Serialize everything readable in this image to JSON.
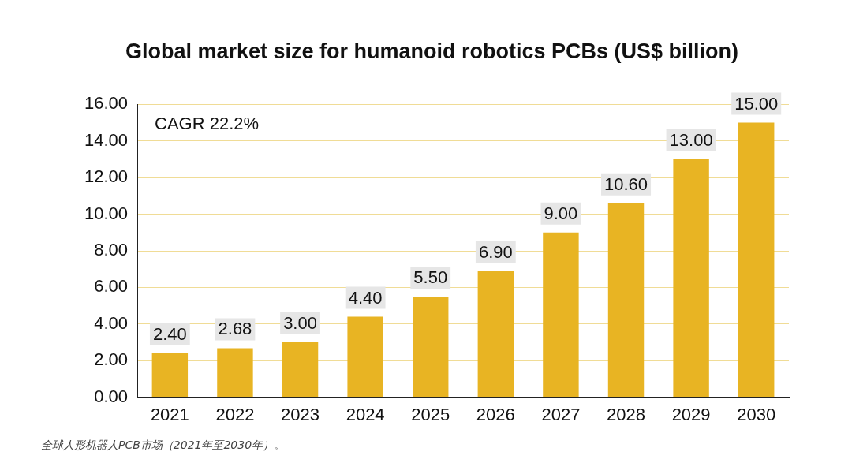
{
  "chart_data": {
    "type": "bar",
    "title": "Global market size for humanoid robotics PCBs (US$ billion)",
    "categories": [
      "2021",
      "2022",
      "2023",
      "2024",
      "2025",
      "2026",
      "2027",
      "2028",
      "2029",
      "2030"
    ],
    "values": [
      2.4,
      2.68,
      3.0,
      4.4,
      5.5,
      6.9,
      9.0,
      10.6,
      13.0,
      15.0
    ],
    "value_labels": [
      "2.40",
      "2.68",
      "3.00",
      "4.40",
      "5.50",
      "6.90",
      "9.00",
      "10.60",
      "13.00",
      "15.00"
    ],
    "color": "#e8b423",
    "ylim": [
      0,
      16
    ],
    "yticks": [
      {
        "value": 0,
        "label": "0.00"
      },
      {
        "value": 2,
        "label": "2.00"
      },
      {
        "value": 4,
        "label": "4.00"
      },
      {
        "value": 6,
        "label": "6.00"
      },
      {
        "value": 8,
        "label": "8.00"
      },
      {
        "value": 10,
        "label": "10.00"
      },
      {
        "value": 12,
        "label": "12.00"
      },
      {
        "value": 14,
        "label": "14.00"
      },
      {
        "value": 16,
        "label": "16.00"
      }
    ],
    "grid": "y",
    "legend": false,
    "annotations": [
      "CAGR 22.2%",
      "全球人形机器人PCB市场（2021年至2030年）。"
    ]
  }
}
